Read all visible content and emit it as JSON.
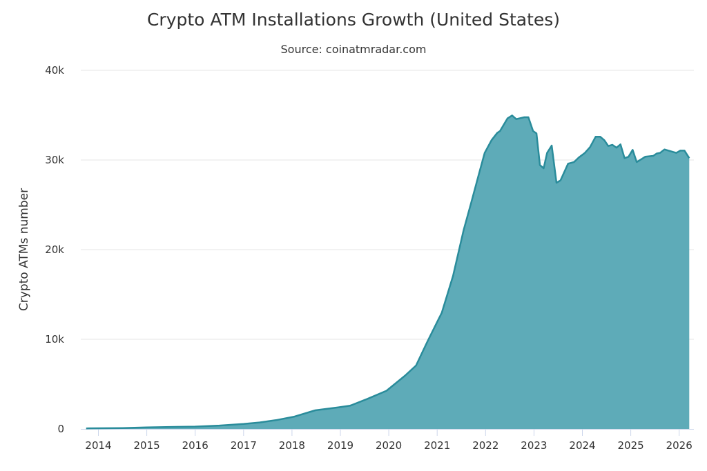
{
  "chart_data": {
    "type": "area",
    "title": "Crypto ATM Installations Growth (United States)",
    "subtitle": "Source: coinatmradar.com",
    "xlabel": "",
    "ylabel": "Crypto ATMs number",
    "x_ticks": [
      "2014",
      "2015",
      "2016",
      "2017",
      "2018",
      "2019",
      "2020",
      "2021",
      "2022",
      "2023",
      "2024",
      "2025",
      "2026"
    ],
    "y_ticks": [
      "0",
      "10k",
      "20k",
      "30k",
      "40k"
    ],
    "ylim": [
      0,
      40000
    ],
    "grid": true,
    "legend": "none",
    "colors": {
      "fill": "#5eabb8",
      "line": "#2a8c9b"
    },
    "points": [
      [
        "2013-10-01",
        60
      ],
      [
        "2014-07-01",
        100
      ],
      [
        "2015-01-01",
        170
      ],
      [
        "2015-07-01",
        220
      ],
      [
        "2016-01-01",
        260
      ],
      [
        "2016-07-01",
        380
      ],
      [
        "2017-01-01",
        560
      ],
      [
        "2017-05-01",
        720
      ],
      [
        "2017-09-01",
        980
      ],
      [
        "2018-01-20",
        1380
      ],
      [
        "2018-06-25",
        2080
      ],
      [
        "2018-12-15",
        2410
      ],
      [
        "2019-03-15",
        2590
      ],
      [
        "2019-07-25",
        3360
      ],
      [
        "2019-12-15",
        4260
      ],
      [
        "2020-05-01",
        5920
      ],
      [
        "2020-07-25",
        7080
      ],
      [
        "2020-10-20",
        9770
      ],
      [
        "2021-02-05",
        12970
      ],
      [
        "2021-05-01",
        17080
      ],
      [
        "2021-07-20",
        22210
      ],
      [
        "2021-09-15",
        25280
      ],
      [
        "2021-11-15",
        28620
      ],
      [
        "2021-12-25",
        30790
      ],
      [
        "2022-02-15",
        32210
      ],
      [
        "2022-03-30",
        33025
      ],
      [
        "2022-04-20",
        33230
      ],
      [
        "2022-06-15",
        34640
      ],
      [
        "2022-07-20",
        34970
      ],
      [
        "2022-08-20",
        34560
      ],
      [
        "2022-10-20",
        34770
      ],
      [
        "2022-11-20",
        34770
      ],
      [
        "2022-12-25",
        33230
      ],
      [
        "2023-01-20",
        32970
      ],
      [
        "2023-02-15",
        29440
      ],
      [
        "2023-03-15",
        29080
      ],
      [
        "2023-04-10",
        30790
      ],
      [
        "2023-05-15",
        31610
      ],
      [
        "2023-06-20",
        27460
      ],
      [
        "2023-07-20",
        27720
      ],
      [
        "2023-09-15",
        29590
      ],
      [
        "2023-10-30",
        29770
      ],
      [
        "2023-12-05",
        30280
      ],
      [
        "2024-01-20",
        30790
      ],
      [
        "2024-02-28",
        31440
      ],
      [
        "2024-04-10",
        32590
      ],
      [
        "2024-05-15",
        32590
      ],
      [
        "2024-06-15",
        32210
      ],
      [
        "2024-07-15",
        31560
      ],
      [
        "2024-08-15",
        31690
      ],
      [
        "2024-09-15",
        31380
      ],
      [
        "2024-10-15",
        31750
      ],
      [
        "2024-11-15",
        30210
      ],
      [
        "2024-12-15",
        30360
      ],
      [
        "2025-01-15",
        31130
      ],
      [
        "2025-02-15",
        29770
      ],
      [
        "2025-03-15",
        30020
      ],
      [
        "2025-04-20",
        30360
      ],
      [
        "2025-06-20",
        30460
      ],
      [
        "2025-07-15",
        30720
      ],
      [
        "2025-08-10",
        30790
      ],
      [
        "2025-09-12",
        31180
      ],
      [
        "2025-12-10",
        30790
      ],
      [
        "2026-01-10",
        31050
      ],
      [
        "2026-02-10",
        31050
      ],
      [
        "2026-03-18",
        30210
      ]
    ]
  }
}
